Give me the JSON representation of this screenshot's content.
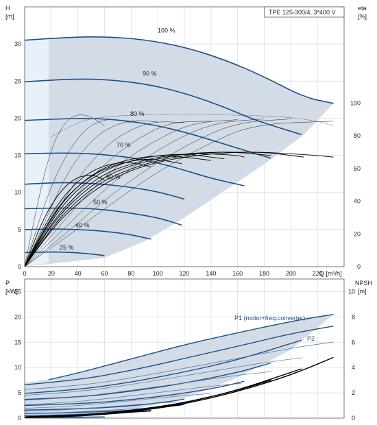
{
  "chart_data": [
    {
      "type": "line",
      "title": "TPE 125-300/4, 3*400 V",
      "ylabel": "H",
      "yunit": "[m]",
      "y2label": "eta",
      "y2unit": "[%]",
      "xlabel": "Q [m³/h]",
      "xlim": [
        0,
        240
      ],
      "ylim": [
        0,
        35
      ],
      "y2lim": [
        0,
        100
      ],
      "x_ticks": [
        0,
        20,
        40,
        60,
        80,
        100,
        120,
        140,
        160,
        180,
        200,
        220
      ],
      "y_ticks": [
        0,
        5,
        10,
        15,
        20,
        25,
        30
      ],
      "y2_ticks": [
        0,
        20,
        40,
        60,
        80,
        100
      ],
      "grid": true,
      "speed_curves": [
        {
          "name": "100 %",
          "x": [
            0,
            30,
            60,
            90,
            120,
            150,
            180,
            210,
            232
          ],
          "y": [
            30.5,
            30.9,
            31.0,
            30.6,
            29.6,
            27.9,
            25.6,
            22.8,
            22.0
          ]
        },
        {
          "name": "90 %",
          "x": [
            0,
            25,
            50,
            75,
            100,
            125,
            150,
            175,
            208
          ],
          "y": [
            24.9,
            25.2,
            25.3,
            25.0,
            24.3,
            23.1,
            21.5,
            19.6,
            17.8
          ]
        },
        {
          "name": "80 %",
          "x": [
            0,
            25,
            50,
            75,
            100,
            125,
            150,
            185
          ],
          "y": [
            19.7,
            19.9,
            20.0,
            19.7,
            19.0,
            17.9,
            16.5,
            14.6
          ]
        },
        {
          "name": "70 %",
          "x": [
            0,
            20,
            40,
            60,
            80,
            100,
            120,
            140,
            165
          ],
          "y": [
            15.2,
            15.3,
            15.3,
            15.1,
            14.7,
            14.0,
            13.0,
            11.9,
            10.9
          ]
        },
        {
          "name": "60 %",
          "x": [
            0,
            20,
            40,
            60,
            80,
            100,
            120
          ],
          "y": [
            11.1,
            11.3,
            11.3,
            11.1,
            10.7,
            10.1,
            9.1
          ]
        },
        {
          "name": "50 %",
          "x": [
            0,
            20,
            40,
            60,
            80,
            100,
            118
          ],
          "y": [
            7.8,
            7.9,
            7.9,
            7.7,
            7.2,
            6.6,
            5.6
          ]
        },
        {
          "name": "40 %",
          "x": [
            0,
            20,
            40,
            60,
            80,
            95
          ],
          "y": [
            5.0,
            5.1,
            5.0,
            4.8,
            4.3,
            3.7
          ]
        },
        {
          "name": "25 %",
          "x": [
            0,
            20,
            40,
            60
          ],
          "y": [
            1.9,
            2.0,
            1.9,
            1.5
          ]
        }
      ],
      "efficiency_curves": [
        {
          "x": [
            0,
            10,
            20,
            30,
            40,
            50,
            55,
            60
          ],
          "y": [
            0,
            22,
            38,
            49,
            55,
            56,
            55,
            53
          ]
        },
        {
          "x": [
            0,
            15,
            30,
            45,
            60,
            75,
            85,
            95
          ],
          "y": [
            0,
            26,
            44,
            56,
            62,
            64,
            63,
            61
          ]
        },
        {
          "x": [
            0,
            15,
            30,
            50,
            70,
            90,
            105,
            118
          ],
          "y": [
            0,
            24,
            42,
            56,
            63,
            66,
            65,
            63
          ]
        },
        {
          "x": [
            0,
            20,
            40,
            60,
            80,
            100,
            120,
            140
          ],
          "y": [
            0,
            31,
            50,
            61,
            66,
            68,
            67,
            65
          ]
        },
        {
          "x": [
            0,
            20,
            40,
            60,
            80,
            100,
            120,
            140,
            150
          ],
          "y": [
            0,
            29,
            48,
            59,
            65,
            68,
            69,
            67,
            66
          ]
        },
        {
          "x": [
            0,
            20,
            40,
            60,
            80,
            100,
            120,
            140,
            160,
            165
          ],
          "y": [
            0,
            27,
            45,
            57,
            63,
            67,
            69,
            69,
            68,
            67
          ]
        },
        {
          "x": [
            0,
            20,
            40,
            60,
            80,
            100,
            120,
            140,
            160,
            185
          ],
          "y": [
            0,
            26,
            43,
            55,
            62,
            66,
            69,
            70,
            70,
            68
          ]
        },
        {
          "x": [
            0,
            20,
            40,
            60,
            80,
            100,
            120,
            140,
            160,
            180,
            200,
            210
          ],
          "y": [
            0,
            24,
            41,
            53,
            60,
            65,
            68,
            70,
            70,
            70,
            68,
            67
          ]
        },
        {
          "x": [
            0,
            20,
            40,
            60,
            80,
            100,
            120,
            140,
            160,
            180,
            200,
            220,
            232
          ],
          "y": [
            0,
            23,
            39,
            51,
            59,
            64,
            67,
            69,
            70,
            70,
            69,
            68,
            67
          ]
        }
      ],
      "thin_curves": [
        {
          "x": [
            0,
            10,
            20,
            30,
            40,
            50,
            60
          ],
          "y": [
            0,
            9,
            16,
            19.5,
            20.6,
            20.2,
            19.0
          ]
        },
        {
          "x": [
            0,
            12,
            25,
            38,
            50,
            65,
            80
          ],
          "y": [
            0,
            7,
            13,
            17,
            19.2,
            20.0,
            19.4
          ]
        },
        {
          "x": [
            0,
            15,
            30,
            45,
            60,
            80,
            100
          ],
          "y": [
            0,
            6,
            12,
            16,
            18.5,
            19.8,
            19.5
          ]
        },
        {
          "x": [
            0,
            18,
            36,
            54,
            72,
            95,
            120
          ],
          "y": [
            0,
            5.5,
            11,
            15,
            17.8,
            19.6,
            19.4
          ]
        },
        {
          "x": [
            0,
            20,
            42,
            64,
            86,
            110,
            140
          ],
          "y": [
            0,
            5,
            10.5,
            14.5,
            17.4,
            19.5,
            19.6
          ]
        },
        {
          "x": [
            0,
            22,
            48,
            72,
            98,
            126,
            160
          ],
          "y": [
            0,
            4.6,
            10,
            14,
            17,
            19.4,
            19.8
          ]
        },
        {
          "x": [
            0,
            25,
            55,
            82,
            110,
            142,
            180
          ],
          "y": [
            0,
            4.3,
            9.6,
            13.6,
            16.8,
            19.4,
            19.9
          ]
        },
        {
          "x": [
            0,
            28,
            60,
            92,
            124,
            158,
            200
          ],
          "y": [
            0,
            4,
            9,
            13.2,
            16.6,
            19.4,
            19.9
          ]
        },
        {
          "x": [
            0,
            30,
            66,
            100,
            136,
            172,
            232
          ],
          "y": [
            0,
            3.8,
            8.6,
            12.8,
            16.4,
            19.2,
            19.6
          ]
        }
      ],
      "eta_max_dashed": {
        "x": [
          20,
          40,
          60,
          80,
          100,
          120,
          140,
          160,
          180,
          200,
          220,
          232
        ],
        "y": [
          17.5,
          19.6,
          20.2,
          20.4,
          20.5,
          20.5,
          20.5,
          20.4,
          20.3,
          20.1,
          19.6,
          19.0
        ]
      },
      "envelope": {
        "x": [
          0,
          18,
          60,
          90,
          120,
          150,
          180,
          210,
          232,
          210,
          180,
          150,
          120,
          90,
          60,
          0
        ],
        "y": [
          30.5,
          30.8,
          31.0,
          30.6,
          29.6,
          27.9,
          25.6,
          22.8,
          22.0,
          17.8,
          13.8,
          10.2,
          6.6,
          3.4,
          1.2,
          0
        ]
      },
      "labels": [
        "100 %",
        "90 %",
        "80 %",
        "70 %",
        "60 %",
        "50 %",
        "40 %",
        "25 %"
      ]
    },
    {
      "type": "line",
      "ylabel": "P",
      "yunit": "[kW]",
      "y2label": "NPSH",
      "y2unit": "[m]",
      "xlim": [
        0,
        240
      ],
      "ylim": [
        0,
        27.5
      ],
      "y2lim": [
        0,
        11
      ],
      "y_ticks": [
        0,
        5,
        10,
        15,
        20,
        25
      ],
      "y2_ticks": [
        0,
        2,
        4,
        6,
        8,
        10
      ],
      "grid": true,
      "series": [
        {
          "name": "P1 (motor+freq.converter)",
          "x": [
            18,
            40,
            60,
            90,
            120,
            150,
            180,
            210,
            232
          ],
          "y": [
            7.6,
            8.9,
            10.3,
            12.4,
            14.5,
            16.3,
            18.0,
            19.6,
            20.5
          ]
        },
        {
          "name": "P2",
          "x": [
            0,
            40,
            80,
            120,
            160,
            200,
            232
          ],
          "y": [
            6.6,
            7.5,
            9.4,
            11.8,
            14.2,
            16.7,
            18.2
          ]
        }
      ],
      "power_curves": [
        {
          "x": [
            0,
            40,
            80,
            120,
            160,
            208
          ],
          "y": [
            4.9,
            5.6,
            7.1,
            9.1,
            11.5,
            15.4
          ]
        },
        {
          "x": [
            0,
            40,
            80,
            120,
            160,
            185
          ],
          "y": [
            3.7,
            4.1,
            5.3,
            6.9,
            9.0,
            10.9
          ]
        },
        {
          "x": [
            0,
            40,
            80,
            120,
            150,
            165
          ],
          "y": [
            2.5,
            2.8,
            3.6,
            4.9,
            6.3,
            7.3
          ]
        },
        {
          "x": [
            0,
            40,
            80,
            110,
            120
          ],
          "y": [
            1.6,
            1.8,
            2.4,
            3.3,
            3.8
          ]
        },
        {
          "x": [
            0,
            40,
            80,
            100,
            118
          ],
          "y": [
            0.9,
            1.1,
            1.5,
            2.1,
            2.6
          ]
        },
        {
          "x": [
            0,
            30,
            60,
            95
          ],
          "y": [
            0.5,
            0.6,
            0.9,
            1.4
          ]
        },
        {
          "x": [
            0,
            30,
            60
          ],
          "y": [
            0.1,
            0.15,
            0.25
          ]
        }
      ],
      "npsh_curves": [
        {
          "x": [
            0,
            40,
            80,
            120,
            160,
            200,
            232
          ],
          "y": [
            0.1,
            0.2,
            0.5,
            1.1,
            2.1,
            3.4,
            4.8
          ]
        },
        {
          "x": [
            0,
            40,
            80,
            120,
            160,
            208
          ],
          "y": [
            0.1,
            0.2,
            0.5,
            1.2,
            2.2,
            3.9
          ]
        },
        {
          "x": [
            0,
            40,
            80,
            120,
            160,
            185
          ],
          "y": [
            0.1,
            0.2,
            0.6,
            1.2,
            2.2,
            3.0
          ]
        },
        {
          "x": [
            0,
            40,
            80,
            120,
            140
          ],
          "y": [
            0.1,
            0.2,
            0.6,
            1.2,
            1.7
          ]
        },
        {
          "x": [
            0,
            40,
            80,
            100,
            120
          ],
          "y": [
            0.05,
            0.2,
            0.5,
            0.8,
            1.1
          ]
        },
        {
          "x": [
            0,
            30,
            60,
            95
          ],
          "y": [
            0.05,
            0.1,
            0.3,
            0.6
          ]
        }
      ],
      "envelope": {
        "x": [
          0,
          18,
          60,
          90,
          120,
          150,
          180,
          210,
          232,
          200,
          160,
          120,
          80,
          40,
          0
        ],
        "y": [
          7.0,
          7.6,
          10.3,
          12.4,
          14.5,
          16.3,
          18.0,
          19.6,
          20.5,
          13.5,
          8.0,
          4.0,
          1.6,
          0.5,
          0.1
        ]
      }
    }
  ],
  "colors": {
    "curve": "#1b4f86",
    "fill": "#d2dbe6",
    "fill_light": "#e8f1f9",
    "grid": "#d9d9d9"
  }
}
